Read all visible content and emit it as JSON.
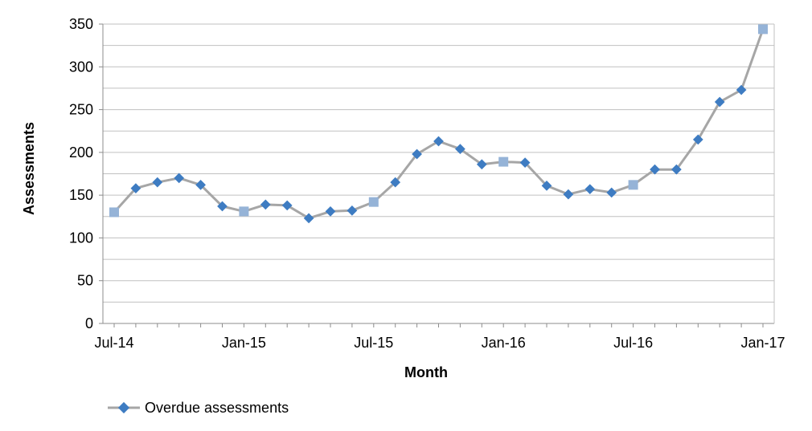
{
  "chart_data": {
    "type": "line",
    "xlabel": "Month",
    "ylabel": "Assessments",
    "ylim": [
      0,
      350
    ],
    "y_ticks": [
      "0",
      "50",
      "100",
      "150",
      "200",
      "250",
      "300",
      "350"
    ],
    "x_tick_labels": [
      {
        "index": 0,
        "label": "Jul-14"
      },
      {
        "index": 6,
        "label": "Jan-15"
      },
      {
        "index": 12,
        "label": "Jul-15"
      },
      {
        "index": 18,
        "label": "Jan-16"
      },
      {
        "index": 24,
        "label": "Jul-16"
      },
      {
        "index": 30,
        "label": "Jan-17"
      }
    ],
    "x": [
      "Jul-14",
      "Aug-14",
      "Sep-14",
      "Oct-14",
      "Nov-14",
      "Dec-14",
      "Jan-15",
      "Feb-15",
      "Mar-15",
      "Apr-15",
      "May-15",
      "Jun-15",
      "Jul-15",
      "Aug-15",
      "Sep-15",
      "Oct-15",
      "Nov-15",
      "Dec-15",
      "Jan-16",
      "Feb-16",
      "Mar-16",
      "Apr-16",
      "May-16",
      "Jun-16",
      "Jul-16",
      "Aug-16",
      "Sep-16",
      "Oct-16",
      "Nov-16",
      "Dec-16",
      "Jan-17"
    ],
    "series": [
      {
        "name": "Overdue assessments",
        "values": [
          130,
          158,
          165,
          170,
          162,
          137,
          131,
          139,
          138,
          123,
          131,
          132,
          142,
          165,
          198,
          213,
          204,
          186,
          189,
          188,
          161,
          151,
          157,
          153,
          162,
          180,
          180,
          215,
          259,
          273,
          344
        ],
        "highlighted_indices": [
          0,
          6,
          12,
          18,
          24,
          30
        ]
      }
    ],
    "grid": true,
    "minor_grid": true,
    "legend_position": "bottom-left",
    "colors": {
      "line": "#a6a6a6",
      "marker": "#3e7cc2",
      "marker_highlight": "#95b3d7",
      "grid": "#c0c0c0",
      "axis": "#8c8c8c"
    }
  }
}
